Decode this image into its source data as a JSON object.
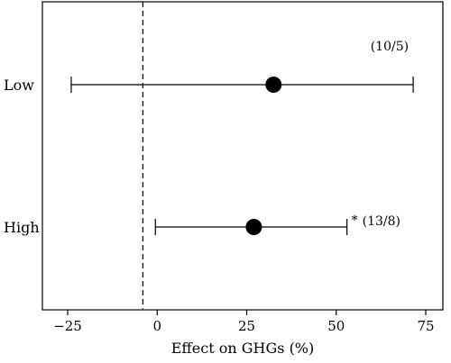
{
  "chart_data": {
    "type": "forest",
    "title": "",
    "xlabel": "Effect on GHGs (%)",
    "ylabel": "",
    "xlim": [
      -30,
      80
    ],
    "xticks": [
      -25,
      0,
      25,
      50,
      75
    ],
    "reference_line": -4,
    "categories": [
      "Low",
      "High"
    ],
    "series": [
      {
        "category": "Low",
        "estimate": 32.5,
        "ci_lower": -24,
        "ci_upper": 71.5,
        "annotation": "(10/5)",
        "significance": ""
      },
      {
        "category": "High",
        "estimate": 27,
        "ci_lower": -0.5,
        "ci_upper": 53,
        "annotation": "(13/8)",
        "significance": "*"
      }
    ],
    "grid": false
  },
  "colors": {
    "line": "#000000",
    "marker": "#000000",
    "background": "#ffffff"
  }
}
